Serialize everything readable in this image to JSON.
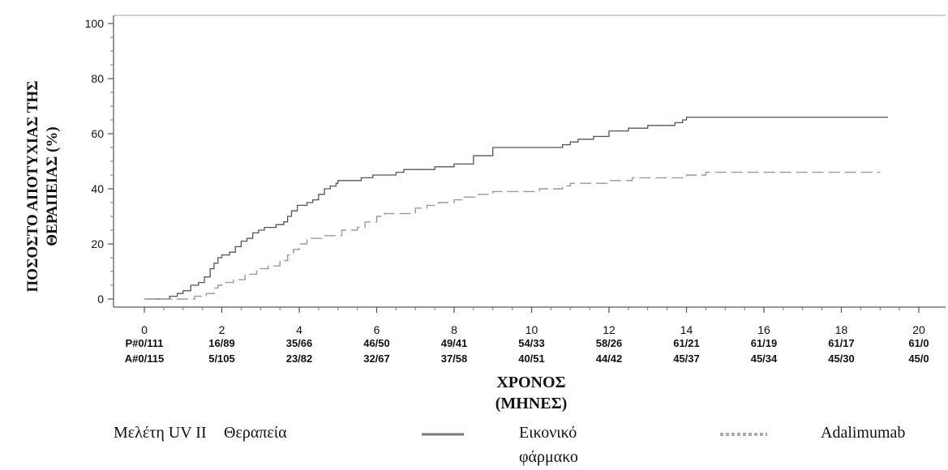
{
  "chart_data": {
    "type": "line",
    "ylabel_line1": "ΠΟΣΟΣΤΟ ΑΠΟΤΥΧΙΑΣ ΤΗΣ",
    "ylabel_line2": "ΘΕΡΑΠΕΙΑΣ (%)",
    "xlabel_line1": "ΧΡΟΝΟΣ",
    "xlabel_line2": "(ΜΗΝΕΣ)",
    "xlim": [
      0,
      20
    ],
    "ylim": [
      0,
      100
    ],
    "xticks": [
      0,
      2,
      4,
      6,
      8,
      10,
      12,
      14,
      16,
      18,
      20
    ],
    "yticks": [
      0,
      20,
      40,
      60,
      80,
      100
    ],
    "grid": false,
    "series": [
      {
        "name": "Εικονικό φάρμακο",
        "style": "solid",
        "color": "#555555",
        "points": [
          [
            0,
            0
          ],
          [
            0.65,
            1
          ],
          [
            0.85,
            2
          ],
          [
            1.0,
            3
          ],
          [
            1.2,
            5
          ],
          [
            1.4,
            6
          ],
          [
            1.55,
            8
          ],
          [
            1.7,
            11
          ],
          [
            1.8,
            13
          ],
          [
            1.9,
            15
          ],
          [
            2.0,
            16
          ],
          [
            2.2,
            17
          ],
          [
            2.35,
            19
          ],
          [
            2.5,
            21
          ],
          [
            2.65,
            22
          ],
          [
            2.8,
            24
          ],
          [
            2.95,
            25
          ],
          [
            3.1,
            26
          ],
          [
            3.4,
            27
          ],
          [
            3.6,
            28
          ],
          [
            3.7,
            30
          ],
          [
            3.8,
            32
          ],
          [
            3.95,
            34
          ],
          [
            4.2,
            35
          ],
          [
            4.35,
            36
          ],
          [
            4.5,
            38
          ],
          [
            4.65,
            40
          ],
          [
            4.8,
            41
          ],
          [
            4.95,
            42
          ],
          [
            5.0,
            43
          ],
          [
            5.6,
            44
          ],
          [
            5.9,
            45
          ],
          [
            6.5,
            46
          ],
          [
            6.7,
            47
          ],
          [
            7.5,
            48
          ],
          [
            8.0,
            49
          ],
          [
            8.5,
            52
          ],
          [
            9.0,
            55
          ],
          [
            10.8,
            56
          ],
          [
            11.0,
            57
          ],
          [
            11.2,
            58
          ],
          [
            11.6,
            59
          ],
          [
            12.0,
            61
          ],
          [
            12.5,
            62
          ],
          [
            13.0,
            63
          ],
          [
            13.7,
            64
          ],
          [
            13.9,
            65
          ],
          [
            14.0,
            66
          ],
          [
            19.2,
            66
          ]
        ]
      },
      {
        "name": "Adalimumab",
        "style": "dashed",
        "color": "#999999",
        "points": [
          [
            0,
            0
          ],
          [
            1.3,
            1
          ],
          [
            1.6,
            2
          ],
          [
            1.8,
            4
          ],
          [
            1.9,
            5
          ],
          [
            2.0,
            6
          ],
          [
            2.3,
            7
          ],
          [
            2.6,
            9
          ],
          [
            2.9,
            11
          ],
          [
            3.2,
            12
          ],
          [
            3.5,
            14
          ],
          [
            3.7,
            16
          ],
          [
            3.85,
            18
          ],
          [
            4.0,
            20
          ],
          [
            4.2,
            22
          ],
          [
            4.6,
            23
          ],
          [
            5.1,
            25
          ],
          [
            5.5,
            26
          ],
          [
            5.7,
            28
          ],
          [
            6.0,
            30
          ],
          [
            6.2,
            31
          ],
          [
            7.0,
            33
          ],
          [
            7.3,
            34
          ],
          [
            7.6,
            35
          ],
          [
            8.0,
            36
          ],
          [
            8.2,
            37
          ],
          [
            8.6,
            38
          ],
          [
            9.0,
            39
          ],
          [
            10.2,
            40
          ],
          [
            10.8,
            41
          ],
          [
            11.0,
            42
          ],
          [
            12.0,
            43
          ],
          [
            12.6,
            44
          ],
          [
            14.0,
            45
          ],
          [
            14.5,
            46
          ],
          [
            19.0,
            46
          ]
        ]
      }
    ],
    "risk_table": [
      {
        "label": "P#",
        "values": [
          "0/111",
          "16/89",
          "35/66",
          "46/50",
          "49/41",
          "54/33",
          "58/26",
          "61/21",
          "61/19",
          "61/17",
          "61/0"
        ]
      },
      {
        "label": "A#",
        "values": [
          "0/115",
          "5/105",
          "23/82",
          "32/67",
          "37/58",
          "40/51",
          "44/42",
          "45/37",
          "45/34",
          "45/30",
          "45/0"
        ]
      }
    ],
    "legend": {
      "study_label": "Μελέτη UV II",
      "therapy_label": "Θεραπεία",
      "placebo_line1": "Εικονικό",
      "placebo_line2": "φάρμακο",
      "adalimumab": "Adalimumab"
    }
  }
}
